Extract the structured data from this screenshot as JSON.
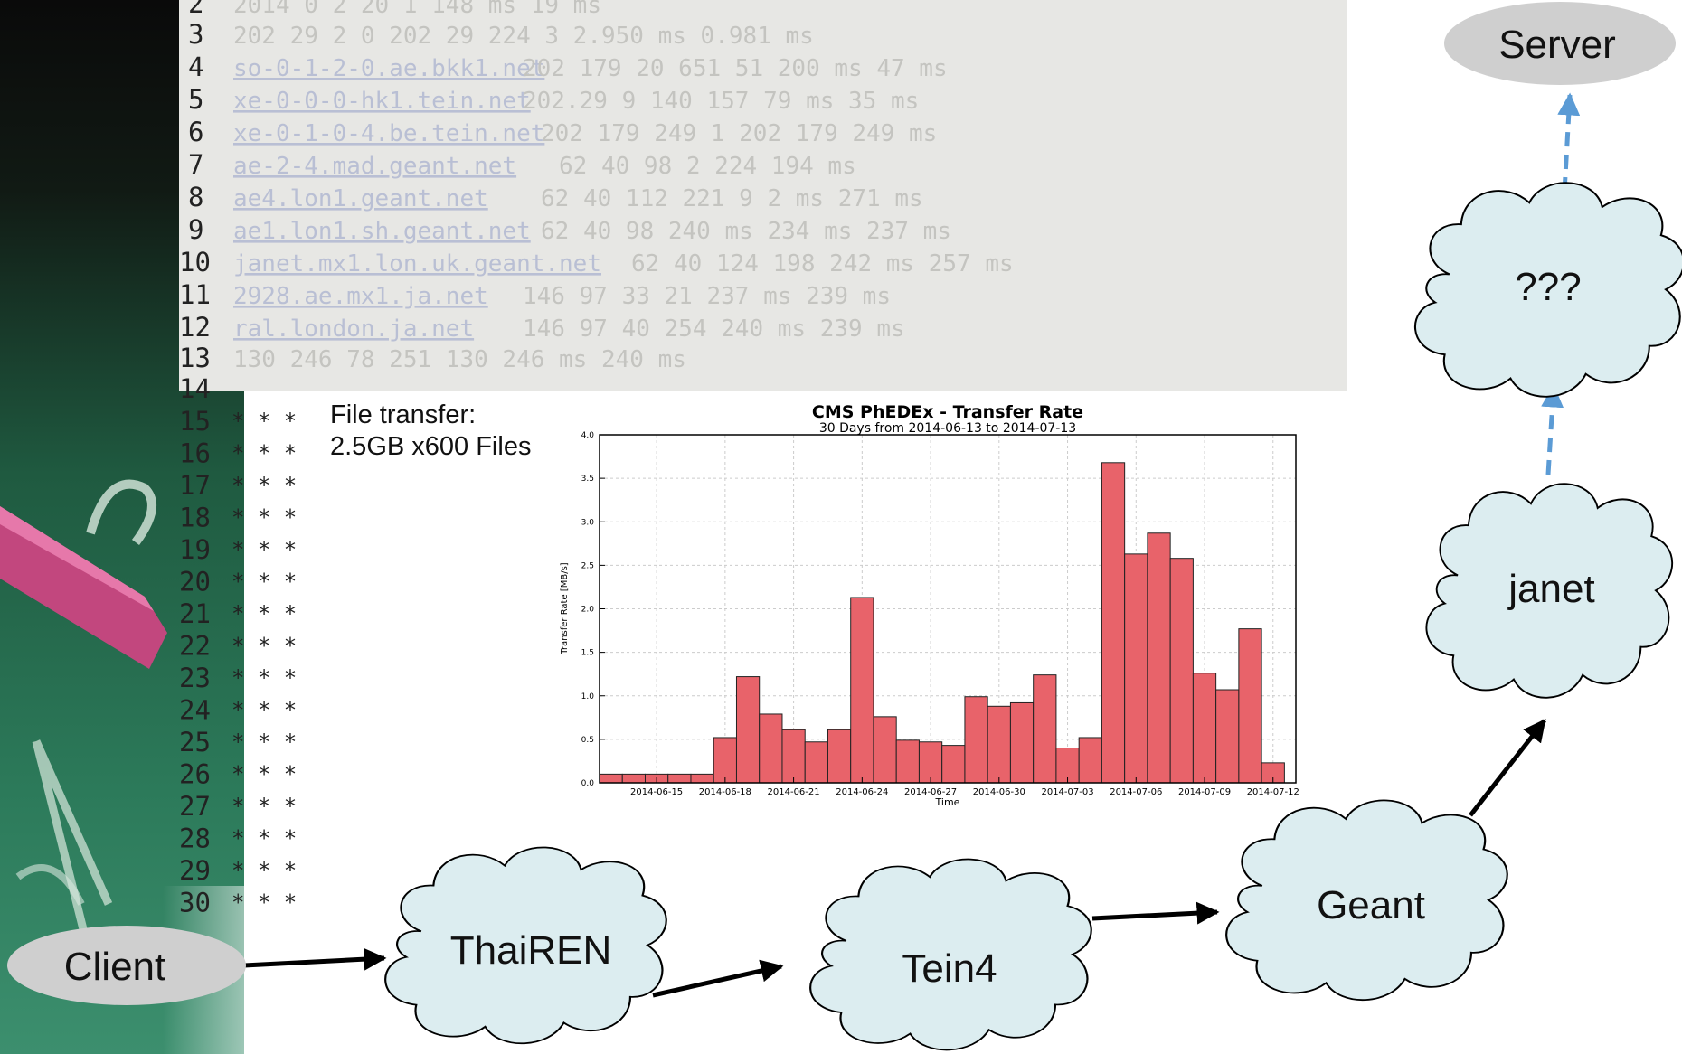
{
  "trace": {
    "line_numbers": [
      "2",
      "3",
      "4",
      "5",
      "6",
      "7",
      "8",
      "9",
      "10",
      "11",
      "12",
      "13",
      "14",
      "15",
      "16",
      "17",
      "18",
      "19",
      "20",
      "21",
      "22",
      "23",
      "24",
      "25",
      "26",
      "27",
      "28",
      "29",
      "30"
    ],
    "timeout_marker": "* * *",
    "fragment_s": "s"
  },
  "file_transfer": {
    "line1": "File transfer:",
    "line2": "2.5GB x600 Files"
  },
  "chart_data": {
    "type": "bar",
    "title": "CMS PhEDEx - Transfer Rate",
    "subtitle": "30 Days from 2014-06-13 to 2014-07-13",
    "xlabel": "Time",
    "ylabel": "Transfer Rate [MB/s]",
    "ylim": [
      0,
      4.0
    ],
    "yticks": [
      "0.0",
      "0.5",
      "1.0",
      "1.5",
      "2.0",
      "2.5",
      "3.0",
      "3.5",
      "4.0"
    ],
    "xtick_labels": [
      "2014-06-15",
      "2014-06-18",
      "2014-06-21",
      "2014-06-24",
      "2014-06-27",
      "2014-06-30",
      "2014-07-03",
      "2014-07-06",
      "2014-07-09",
      "2014-07-12"
    ],
    "grid": true,
    "bar_color": "#e8636a",
    "categories": [
      "2014-06-13",
      "2014-06-14",
      "2014-06-15",
      "2014-06-16",
      "2014-06-17",
      "2014-06-18",
      "2014-06-19",
      "2014-06-20",
      "2014-06-21",
      "2014-06-22",
      "2014-06-23",
      "2014-06-24",
      "2014-06-25",
      "2014-06-26",
      "2014-06-27",
      "2014-06-28",
      "2014-06-29",
      "2014-06-30",
      "2014-07-01",
      "2014-07-02",
      "2014-07-03",
      "2014-07-04",
      "2014-07-05",
      "2014-07-06",
      "2014-07-07",
      "2014-07-08",
      "2014-07-09",
      "2014-07-10",
      "2014-07-11",
      "2014-07-12"
    ],
    "values": [
      0.1,
      0.1,
      0.1,
      0.1,
      0.1,
      0.52,
      1.22,
      0.79,
      0.61,
      0.47,
      0.61,
      2.13,
      0.76,
      0.49,
      0.47,
      0.43,
      0.99,
      0.88,
      0.92,
      1.24,
      0.4,
      0.52,
      3.68,
      2.63,
      2.87,
      2.58,
      1.26,
      1.07,
      1.77,
      0.23
    ]
  },
  "network": {
    "nodes": [
      {
        "id": "client",
        "label": "Client",
        "shape": "ellipse"
      },
      {
        "id": "thairen",
        "label": "ThaiREN",
        "shape": "cloud"
      },
      {
        "id": "tein4",
        "label": "Tein4",
        "shape": "cloud"
      },
      {
        "id": "geant",
        "label": "Geant",
        "shape": "cloud"
      },
      {
        "id": "janet",
        "label": "janet",
        "shape": "cloud"
      },
      {
        "id": "unknown",
        "label": "???",
        "shape": "cloud"
      },
      {
        "id": "server",
        "label": "Server",
        "shape": "ellipse"
      }
    ],
    "edges": [
      {
        "from": "client",
        "to": "thairen",
        "style": "solid"
      },
      {
        "from": "thairen",
        "to": "tein4",
        "style": "solid"
      },
      {
        "from": "tein4",
        "to": "geant",
        "style": "solid"
      },
      {
        "from": "geant",
        "to": "janet",
        "style": "solid"
      },
      {
        "from": "janet",
        "to": "unknown",
        "style": "dashed"
      },
      {
        "from": "unknown",
        "to": "server",
        "style": "dashed"
      }
    ],
    "colors": {
      "cloud_fill": "#dcedf0",
      "ellipse_fill": "#cfcfcf",
      "solid_edge": "#000000",
      "dashed_edge": "#5b9bd5"
    }
  }
}
